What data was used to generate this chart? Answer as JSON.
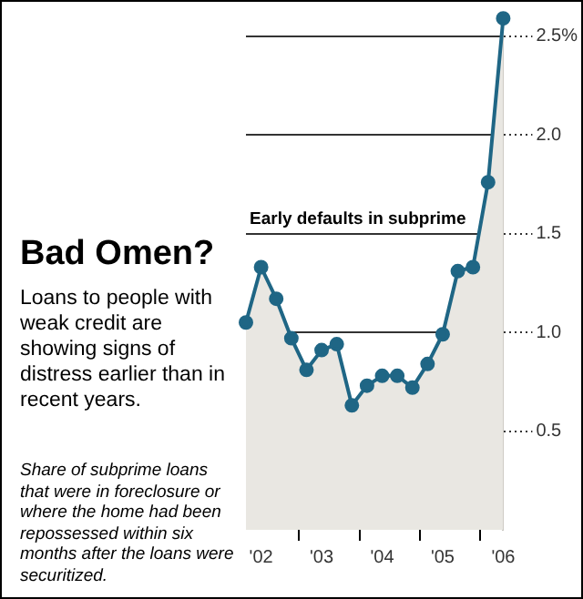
{
  "chart_data": {
    "type": "area",
    "title": "Bad Omen?",
    "subtitle": "Loans to people with weak credit are showing signs of distress earlier than in recent years.",
    "annotations": [
      "Early defaults in subprime",
      "Share of subprime loans that were in foreclosure or where the home had been repossessed within six months after the loans were securitized."
    ],
    "categories": [
      null,
      "'02",
      null,
      null,
      null,
      "'03",
      null,
      null,
      null,
      "'04",
      null,
      null,
      null,
      "'05",
      null,
      null,
      null,
      "'06"
    ],
    "series": [
      {
        "color": "#1f6685",
        "values": [
          1.05,
          1.33,
          1.17,
          0.97,
          0.81,
          0.91,
          0.94,
          0.63,
          0.73,
          0.78,
          0.78,
          0.72,
          0.84,
          0.99,
          1.31,
          1.33,
          1.76,
          2.59
        ]
      }
    ],
    "ylim": [
      0,
      2.6
    ],
    "yticks": [
      0.5,
      {
        "value": 1,
        "label": "1.0"
      },
      1.5,
      {
        "value": 2,
        "label": "2.0"
      },
      {
        "value": 2.5,
        "label": "2.5%"
      }
    ],
    "grid": "y",
    "legend": false,
    "marker": "circle",
    "line_style": "solid"
  }
}
